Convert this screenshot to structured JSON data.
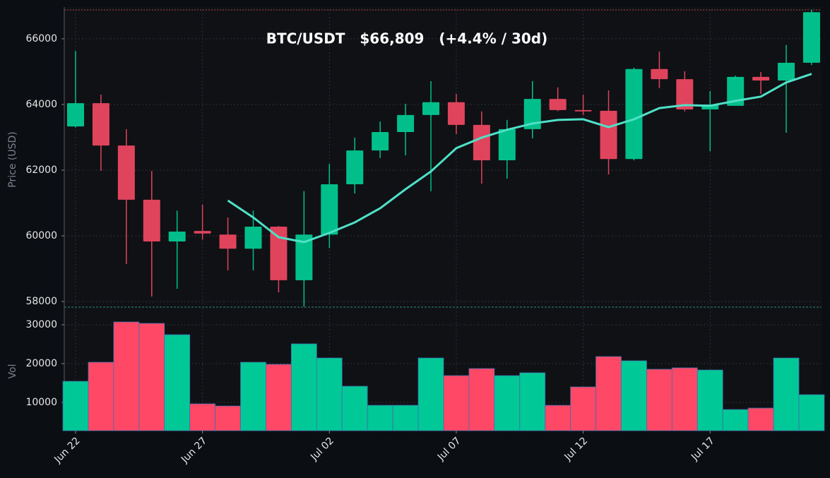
{
  "chart_data": {
    "type": "candlestick",
    "title": "BTC/USDT   $66,809   (+4.4% / 30d)",
    "ylabel": "Price (USD)",
    "categories": [
      "Jun 22",
      null,
      null,
      null,
      null,
      "Jun 27",
      null,
      null,
      null,
      null,
      "Jul 02",
      null,
      null,
      null,
      null,
      "Jul 07",
      null,
      null,
      null,
      null,
      "Jul 12",
      null,
      null,
      null,
      null,
      "Jul 17",
      null,
      null,
      null,
      null
    ],
    "open": [
      63330,
      64040,
      62750,
      61100,
      59830,
      60150,
      60040,
      59610,
      60280,
      58650,
      60040,
      61570,
      62600,
      63160,
      63680,
      64070,
      63380,
      62300,
      63250,
      64170,
      63830,
      63810,
      62340,
      65080,
      64770,
      63850,
      63960,
      64840,
      64730,
      65270
    ],
    "high": [
      65630,
      64300,
      63250,
      61980,
      60770,
      60950,
      60560,
      60770,
      60300,
      61360,
      62190,
      62990,
      63480,
      64020,
      64710,
      64320,
      63790,
      63530,
      64710,
      64520,
      64300,
      64430,
      65120,
      65610,
      65010,
      64410,
      64880,
      64990,
      65810,
      66880
    ],
    "low": [
      63300,
      61980,
      59140,
      58150,
      58390,
      59890,
      58950,
      58950,
      58280,
      57850,
      59630,
      61290,
      62370,
      62450,
      61360,
      63100,
      61590,
      61740,
      62970,
      63800,
      63680,
      61870,
      62300,
      64500,
      63790,
      62580,
      63960,
      64320,
      63140,
      65200
    ],
    "close": [
      64040,
      62750,
      61100,
      59830,
      60130,
      60070,
      59610,
      60280,
      58650,
      60040,
      61570,
      62600,
      63160,
      63680,
      64070,
      63380,
      62300,
      63250,
      64170,
      63830,
      63790,
      62340,
      65080,
      64770,
      63850,
      64000,
      64840,
      64730,
      65270,
      66809
    ],
    "up_color": "#00bf8a",
    "down_color": "#e0435c",
    "ma": {
      "color": "#4fe0c8",
      "values": [
        null,
        null,
        null,
        null,
        null,
        null,
        61075,
        60560,
        59960,
        59810,
        60090,
        60410,
        60840,
        61420,
        61960,
        62670,
        62990,
        63230,
        63420,
        63530,
        63550,
        63310,
        63550,
        63890,
        63980,
        63960,
        64110,
        64240,
        64670,
        64930
      ]
    },
    "ylim": [
      57830,
      66880
    ],
    "yticks": [
      58000,
      60000,
      62000,
      64000,
      66000
    ],
    "grid": true,
    "volume": {
      "ylabel": "Vol",
      "up_color": "#00c896",
      "down_color": "#ff4866",
      "values": [
        15450,
        20360,
        30730,
        30360,
        27450,
        9640,
        9090,
        20360,
        19820,
        25090,
        21450,
        14180,
        9270,
        9270,
        21450,
        16910,
        18730,
        16910,
        17640,
        9270,
        14000,
        21820,
        20730,
        18550,
        18910,
        18360,
        8180,
        8550,
        21450,
        12000
      ],
      "ylim": [
        2730,
        34360
      ],
      "yticks": [
        10000,
        20000,
        30000
      ]
    }
  }
}
